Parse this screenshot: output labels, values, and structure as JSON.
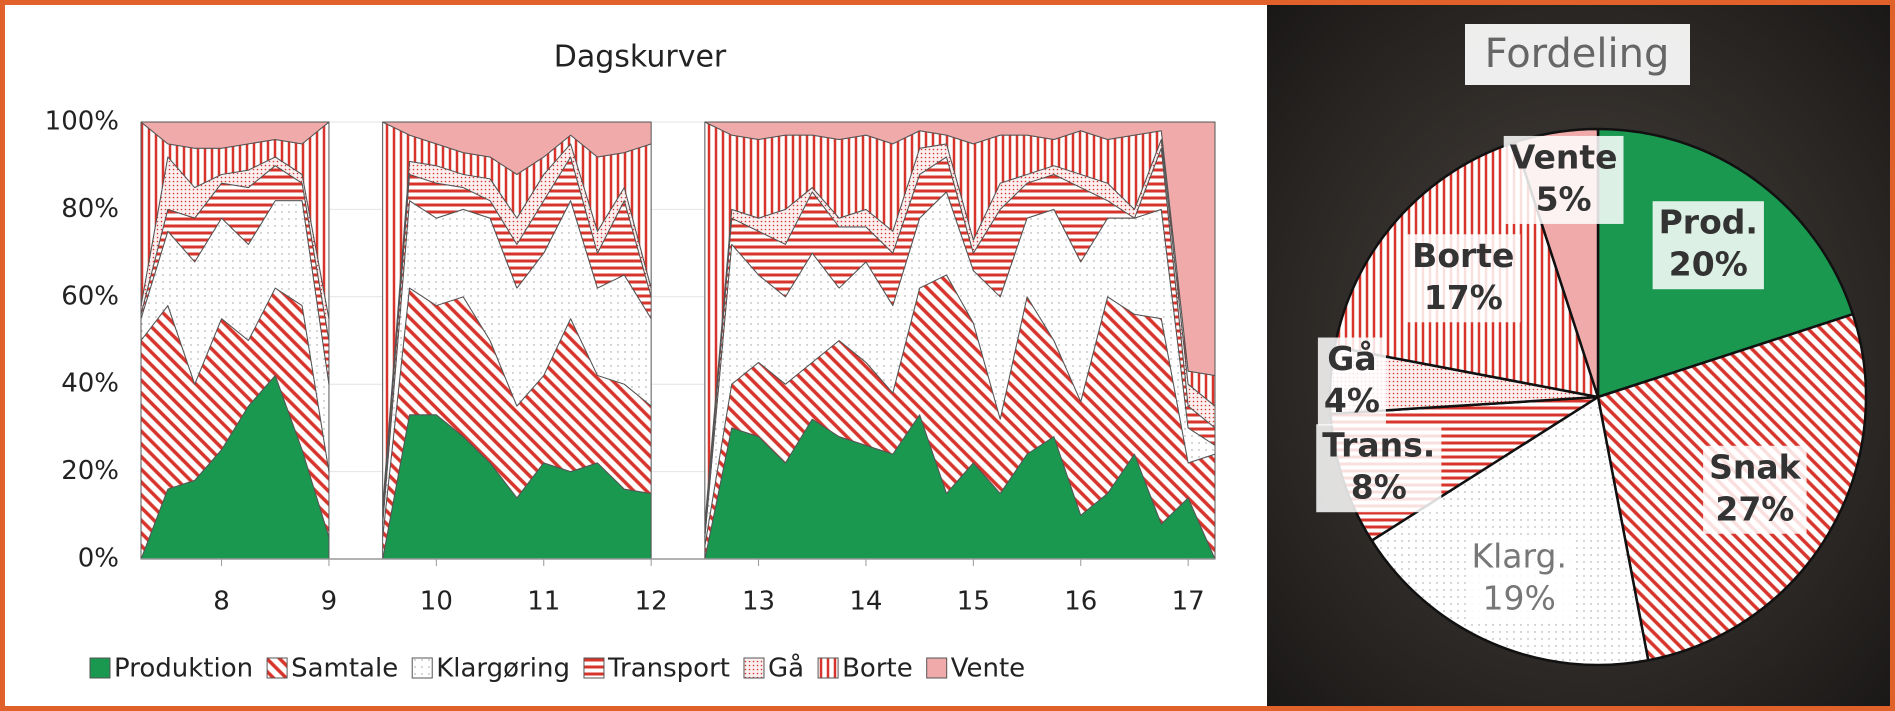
{
  "chart_data": [
    {
      "type": "area",
      "stacked": true,
      "title": "Dagskurver",
      "x": [
        7.25,
        7.5,
        7.75,
        8,
        8.25,
        8.5,
        8.75,
        9,
        9.25,
        9.5,
        9.75,
        10,
        10.25,
        10.5,
        10.75,
        11,
        11.25,
        11.5,
        11.75,
        12,
        12.25,
        12.5,
        12.75,
        13,
        13.25,
        13.5,
        13.75,
        14,
        14.25,
        14.5,
        14.75,
        15,
        15.25,
        15.5,
        15.75,
        16,
        16.25,
        16.5,
        16.75,
        17,
        17.25
      ],
      "xlim": [
        7.25,
        17.25
      ],
      "xticks": [
        8,
        9,
        10,
        11,
        12,
        13,
        14,
        15,
        16,
        17
      ],
      "ylim": [
        0,
        100
      ],
      "yticks": [
        {
          "value": 0,
          "label": "0%"
        },
        {
          "value": 20,
          "label": "20%"
        },
        {
          "value": 40,
          "label": "40%"
        },
        {
          "value": 60,
          "label": "60%"
        },
        {
          "value": 80,
          "label": "80%"
        },
        {
          "value": 100,
          "label": "100%"
        }
      ],
      "grid": true,
      "legend": "bottom",
      "series": [
        {
          "name": "Produktion",
          "color": "#1a9850",
          "pattern": "solid",
          "values": [
            0,
            16,
            18,
            25,
            35,
            42,
            25,
            5,
            null,
            0,
            33,
            33,
            28,
            22,
            14,
            22,
            20,
            22,
            16,
            15,
            null,
            0,
            30,
            28,
            22,
            32,
            28,
            26,
            24,
            33,
            15,
            22,
            15,
            24,
            28,
            10,
            15,
            24,
            8,
            14,
            0
          ]
        },
        {
          "name": "Samtale",
          "color": "#d7342c",
          "pattern": "diagonal",
          "values": [
            50,
            42,
            22,
            30,
            15,
            20,
            33,
            15,
            null,
            5,
            29,
            25,
            32,
            28,
            21,
            20,
            35,
            20,
            24,
            20,
            null,
            3,
            10,
            17,
            18,
            13,
            22,
            19,
            14,
            29,
            50,
            32,
            17,
            36,
            22,
            26,
            45,
            32,
            47,
            8,
            24
          ]
        },
        {
          "name": "Klargøring",
          "color": "#999999",
          "pattern": "dots",
          "values": [
            5,
            17,
            28,
            23,
            22,
            20,
            24,
            20,
            null,
            3,
            20,
            20,
            20,
            28,
            27,
            28,
            27,
            20,
            25,
            20,
            null,
            2,
            32,
            20,
            20,
            25,
            12,
            23,
            20,
            16,
            19,
            12,
            28,
            18,
            30,
            32,
            18,
            22,
            25,
            8,
            2
          ]
        },
        {
          "name": "Transport",
          "color": "#d7342c",
          "pattern": "horizontal",
          "values": [
            1,
            5,
            10,
            8,
            13,
            8,
            4,
            10,
            null,
            2,
            6,
            8,
            5,
            4,
            10,
            12,
            10,
            8,
            17,
            5,
            null,
            1,
            6,
            10,
            12,
            14,
            14,
            8,
            12,
            10,
            8,
            4,
            20,
            8,
            8,
            17,
            4,
            0,
            14,
            5,
            4
          ]
        },
        {
          "name": "Gå",
          "color": "#d7342c",
          "pattern": "dense-dots",
          "values": [
            2,
            12,
            7,
            2,
            4,
            2,
            2,
            5,
            null,
            2,
            3,
            4,
            3,
            5,
            6,
            6,
            3,
            5,
            3,
            2,
            null,
            2,
            2,
            3,
            8,
            1,
            2,
            4,
            5,
            6,
            3,
            3,
            6,
            2,
            2,
            3,
            4,
            2,
            2,
            5,
            5
          ]
        },
        {
          "name": "Borte",
          "color": "#d7342c",
          "pattern": "vertical",
          "values": [
            42,
            3,
            9,
            6,
            6,
            4,
            7,
            45,
            null,
            88,
            6,
            5,
            5,
            5,
            10,
            4,
            2,
            17,
            8,
            33,
            null,
            92,
            17,
            18,
            17,
            12,
            18,
            17,
            20,
            4,
            2,
            22,
            11,
            9,
            6,
            10,
            10,
            17,
            2,
            3,
            7
          ]
        },
        {
          "name": "Vente",
          "color": "#f0aaaa",
          "pattern": "solid",
          "values": [
            0,
            5,
            6,
            6,
            5,
            4,
            5,
            0,
            null,
            0,
            3,
            5,
            7,
            8,
            12,
            8,
            3,
            8,
            7,
            5,
            null,
            0,
            3,
            4,
            3,
            3,
            4,
            3,
            5,
            2,
            3,
            5,
            3,
            3,
            4,
            2,
            4,
            3,
            2,
            57,
            58
          ]
        }
      ]
    },
    {
      "type": "pie",
      "title": "Fordeling",
      "categories": [
        "Prod.",
        "Snak",
        "Klarg.",
        "Trans.",
        "Gå",
        "Borte",
        "Vente"
      ],
      "values": [
        20,
        27,
        19,
        8,
        4,
        17,
        5
      ],
      "value_labels": [
        "20%",
        "27%",
        "19%",
        "8%",
        "4%",
        "17%",
        "5%"
      ],
      "colors": [
        "#1a9850",
        "#d7342c",
        "#999999",
        "#d7342c",
        "#d7342c",
        "#d7342c",
        "#f0aaaa"
      ],
      "patterns": [
        "solid",
        "diagonal",
        "dots",
        "horizontal",
        "dense-dots",
        "vertical",
        "solid"
      ]
    }
  ]
}
